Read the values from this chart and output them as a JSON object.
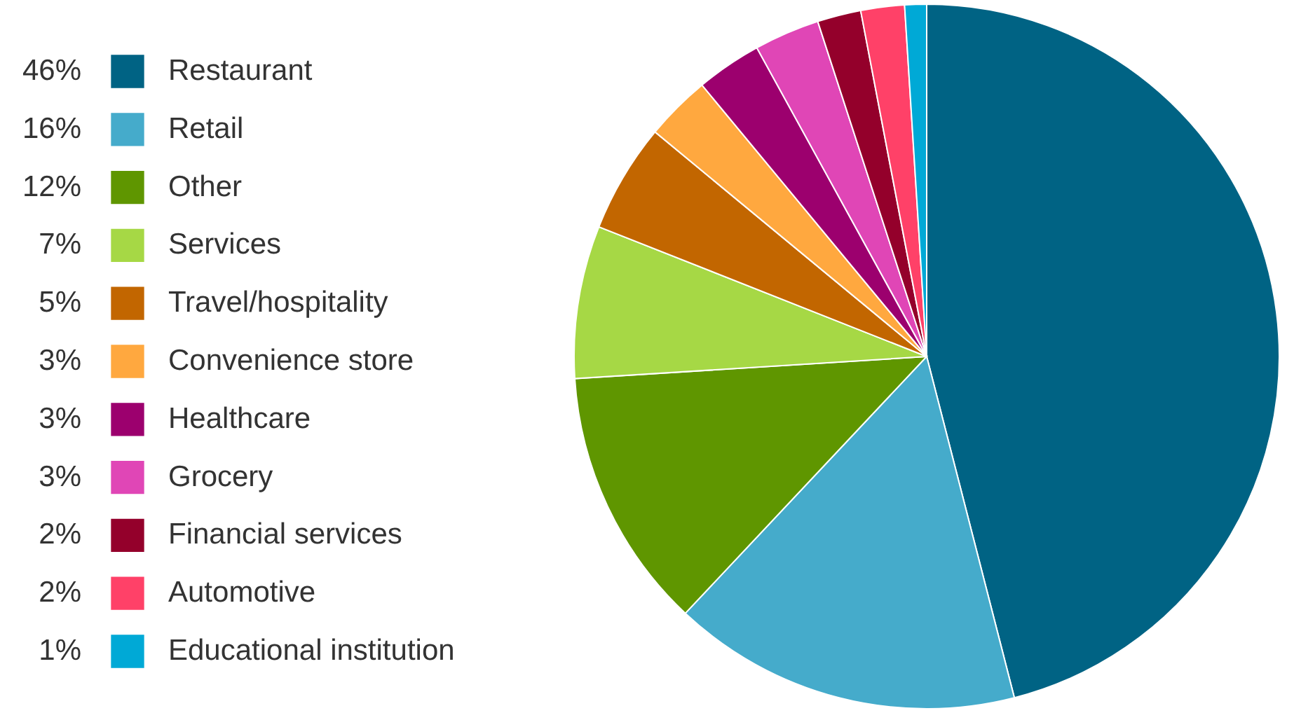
{
  "chart_data": {
    "type": "pie",
    "legend": "left",
    "categories": [
      "Restaurant",
      "Retail",
      "Other",
      "Services",
      "Travel/hospitality",
      "Convenience store",
      "Healthcare",
      "Grocery",
      "Financial services",
      "Automotive",
      "Educational institution"
    ],
    "values": [
      46,
      16,
      12,
      7,
      5,
      3,
      3,
      3,
      2,
      2,
      1
    ],
    "value_labels": [
      "46%",
      "16%",
      "12%",
      "7%",
      "5%",
      "3%",
      "3%",
      "3%",
      "2%",
      "2%",
      "1%"
    ],
    "colors": [
      "#006384",
      "#45abcb",
      "#5f9600",
      "#a6d845",
      "#c26600",
      "#ffa83f",
      "#9c006e",
      "#e046b6",
      "#94002b",
      "#ff4168",
      "#00a9d6"
    ]
  }
}
